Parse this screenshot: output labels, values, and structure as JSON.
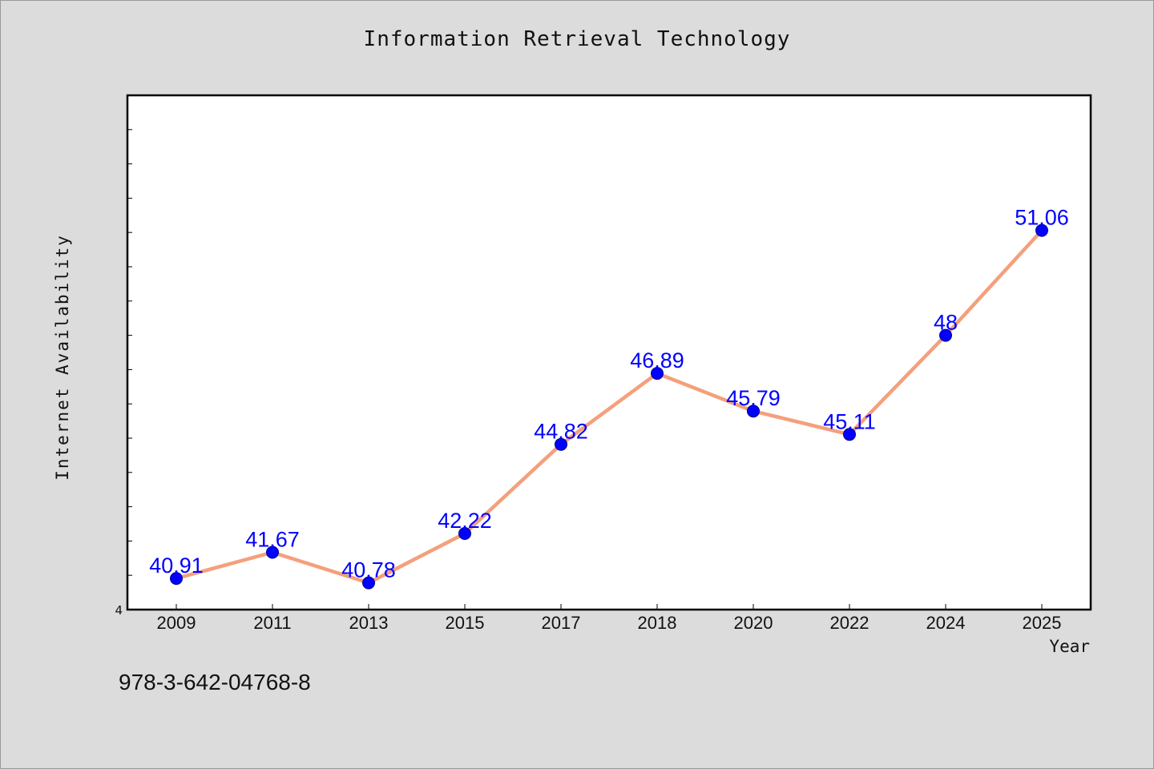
{
  "chart_data": {
    "type": "line",
    "title": "Information Retrieval Technology",
    "xlabel": "Year",
    "ylabel": "Internet Availability",
    "categories": [
      "2009",
      "2011",
      "2013",
      "2015",
      "2017",
      "2018",
      "2020",
      "2022",
      "2024",
      "2025"
    ],
    "series": [
      {
        "values": [
          40.91,
          41.67,
          40.78,
          42.22,
          44.82,
          46.89,
          45.79,
          45.11,
          48,
          51.06
        ],
        "data_labels": [
          "40.91",
          "41.67",
          "40.78",
          "42.22",
          "44.82",
          "46.89",
          "45.79",
          "45.11",
          "48",
          "51.06"
        ]
      }
    ],
    "y_tick_labels": [
      "4"
    ],
    "ylim": [
      40,
      55
    ],
    "grid": false,
    "legend": "none",
    "colors": {
      "line": "#f4a07c",
      "marker": "#0000ff",
      "data_label": "#0000ff",
      "plot_background": "#ffffff",
      "page_background": "#dcdcdc"
    }
  },
  "footer": {
    "id_text": "978-3-642-04768-8"
  }
}
